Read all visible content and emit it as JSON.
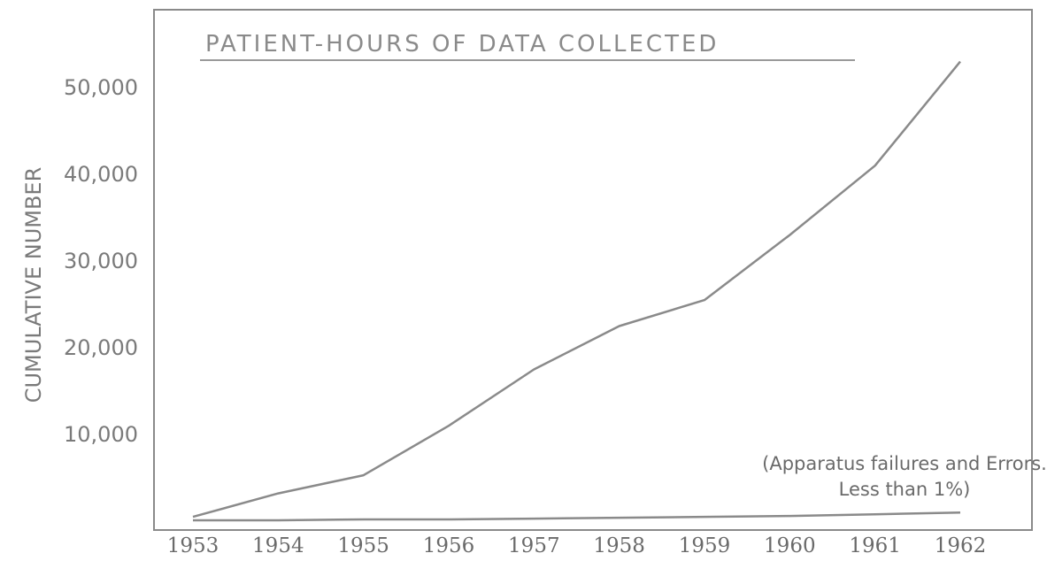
{
  "chart_data": {
    "type": "line",
    "title": "PATIENT-HOURS OF DATA COLLECTED",
    "xlabel": "",
    "ylabel": "CUMULATIVE NUMBER",
    "x": [
      1953,
      1954,
      1955,
      1956,
      1957,
      1958,
      1959,
      1960,
      1961,
      1962
    ],
    "x_tick_labels": [
      "1953",
      "1954",
      "1955",
      "1956",
      "1957",
      "1958",
      "1959",
      "1960",
      "1961",
      "1962"
    ],
    "y_ticks": [
      10000,
      20000,
      30000,
      40000,
      50000
    ],
    "y_tick_labels": [
      "10,000",
      "20,000",
      "30,000",
      "40,000",
      "50,000"
    ],
    "ylim": [
      0,
      56000
    ],
    "grid": false,
    "series": [
      {
        "values": [
          500,
          3200,
          5300,
          11000,
          17500,
          22500,
          25500,
          33000,
          41000,
          53000
        ]
      },
      {
        "values": [
          100,
          100,
          200,
          200,
          300,
          400,
          500,
          600,
          800,
          1000
        ]
      }
    ],
    "annotation": {
      "line1": "(Apparatus failures and Errors.",
      "line2": "Less than 1%)"
    }
  }
}
